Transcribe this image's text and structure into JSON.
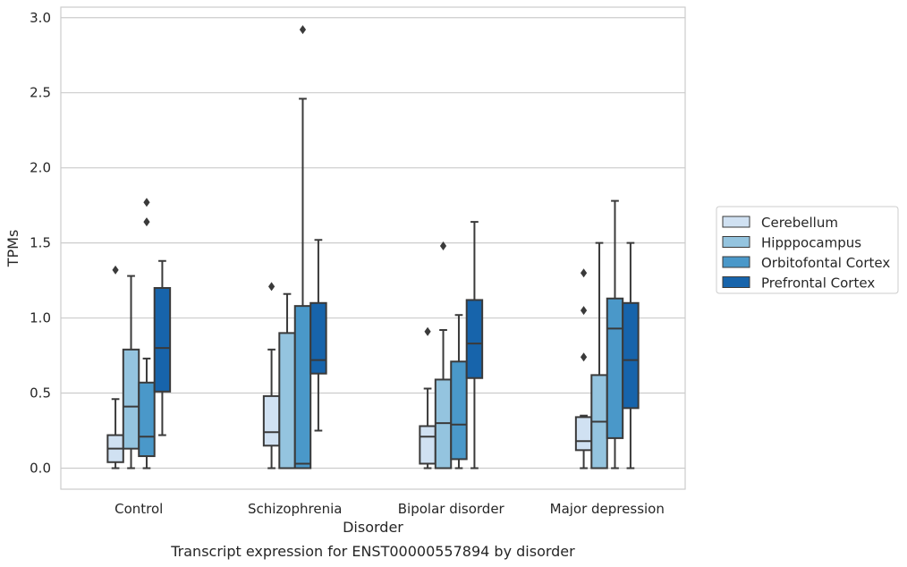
{
  "chart_data": {
    "type": "box",
    "title": "",
    "caption": "Transcript expression for ENST00000557894 by disorder",
    "xlabel": "Disorder",
    "ylabel": "TPMs",
    "ylim": [
      -0.14,
      3.07
    ],
    "yticks": [
      "0.0",
      "0.5",
      "1.0",
      "1.5",
      "2.0",
      "2.5",
      "3.0"
    ],
    "grid": true,
    "legend_position": "right",
    "categories": [
      "Control",
      "Schizophrenia",
      "Bipolar disorder",
      "Major depression"
    ],
    "series": [
      {
        "name": "Cerebellum",
        "color": "#d0e1f2",
        "boxes": [
          {
            "whisker_low": 0.0,
            "q1": 0.04,
            "median": 0.13,
            "q3": 0.22,
            "whisker_high": 0.46,
            "outliers": [
              1.32
            ]
          },
          {
            "whisker_low": 0.0,
            "q1": 0.15,
            "median": 0.24,
            "q3": 0.48,
            "whisker_high": 0.79,
            "outliers": [
              1.21
            ]
          },
          {
            "whisker_low": 0.0,
            "q1": 0.03,
            "median": 0.21,
            "q3": 0.28,
            "whisker_high": 0.53,
            "outliers": [
              0.91
            ]
          },
          {
            "whisker_low": 0.0,
            "q1": 0.12,
            "median": 0.18,
            "q3": 0.34,
            "whisker_high": 0.35,
            "outliers": [
              0.74,
              1.05,
              1.3
            ]
          }
        ]
      },
      {
        "name": "Hipppocampus",
        "color": "#94c4df",
        "boxes": [
          {
            "whisker_low": 0.0,
            "q1": 0.13,
            "median": 0.41,
            "q3": 0.79,
            "whisker_high": 1.28,
            "outliers": []
          },
          {
            "whisker_low": 0.0,
            "q1": 0.0,
            "median": 0.0,
            "q3": 0.9,
            "whisker_high": 1.16,
            "outliers": []
          },
          {
            "whisker_low": 0.0,
            "q1": 0.0,
            "median": 0.3,
            "q3": 0.59,
            "whisker_high": 0.92,
            "outliers": [
              1.48
            ]
          },
          {
            "whisker_low": 0.0,
            "q1": 0.0,
            "median": 0.31,
            "q3": 0.62,
            "whisker_high": 1.5,
            "outliers": []
          }
        ]
      },
      {
        "name": "Orbitofontal Cortex",
        "color": "#4a98c9",
        "boxes": [
          {
            "whisker_low": 0.0,
            "q1": 0.08,
            "median": 0.21,
            "q3": 0.57,
            "whisker_high": 0.73,
            "outliers": [
              1.64,
              1.77
            ]
          },
          {
            "whisker_low": 0.0,
            "q1": 0.0,
            "median": 0.03,
            "q3": 1.08,
            "whisker_high": 2.46,
            "outliers": [
              2.92
            ]
          },
          {
            "whisker_low": 0.0,
            "q1": 0.06,
            "median": 0.29,
            "q3": 0.71,
            "whisker_high": 1.02,
            "outliers": []
          },
          {
            "whisker_low": 0.0,
            "q1": 0.2,
            "median": 0.93,
            "q3": 1.13,
            "whisker_high": 1.78,
            "outliers": []
          }
        ]
      },
      {
        "name": "Prefrontal Cortex",
        "color": "#1764ab",
        "boxes": [
          {
            "whisker_low": 0.22,
            "q1": 0.51,
            "median": 0.8,
            "q3": 1.2,
            "whisker_high": 1.38,
            "outliers": []
          },
          {
            "whisker_low": 0.25,
            "q1": 0.63,
            "median": 0.72,
            "q3": 1.1,
            "whisker_high": 1.52,
            "outliers": []
          },
          {
            "whisker_low": 0.0,
            "q1": 0.6,
            "median": 0.83,
            "q3": 1.12,
            "whisker_high": 1.64,
            "outliers": []
          },
          {
            "whisker_low": 0.0,
            "q1": 0.4,
            "median": 0.72,
            "q3": 1.1,
            "whisker_high": 1.5,
            "outliers": []
          }
        ]
      }
    ]
  }
}
